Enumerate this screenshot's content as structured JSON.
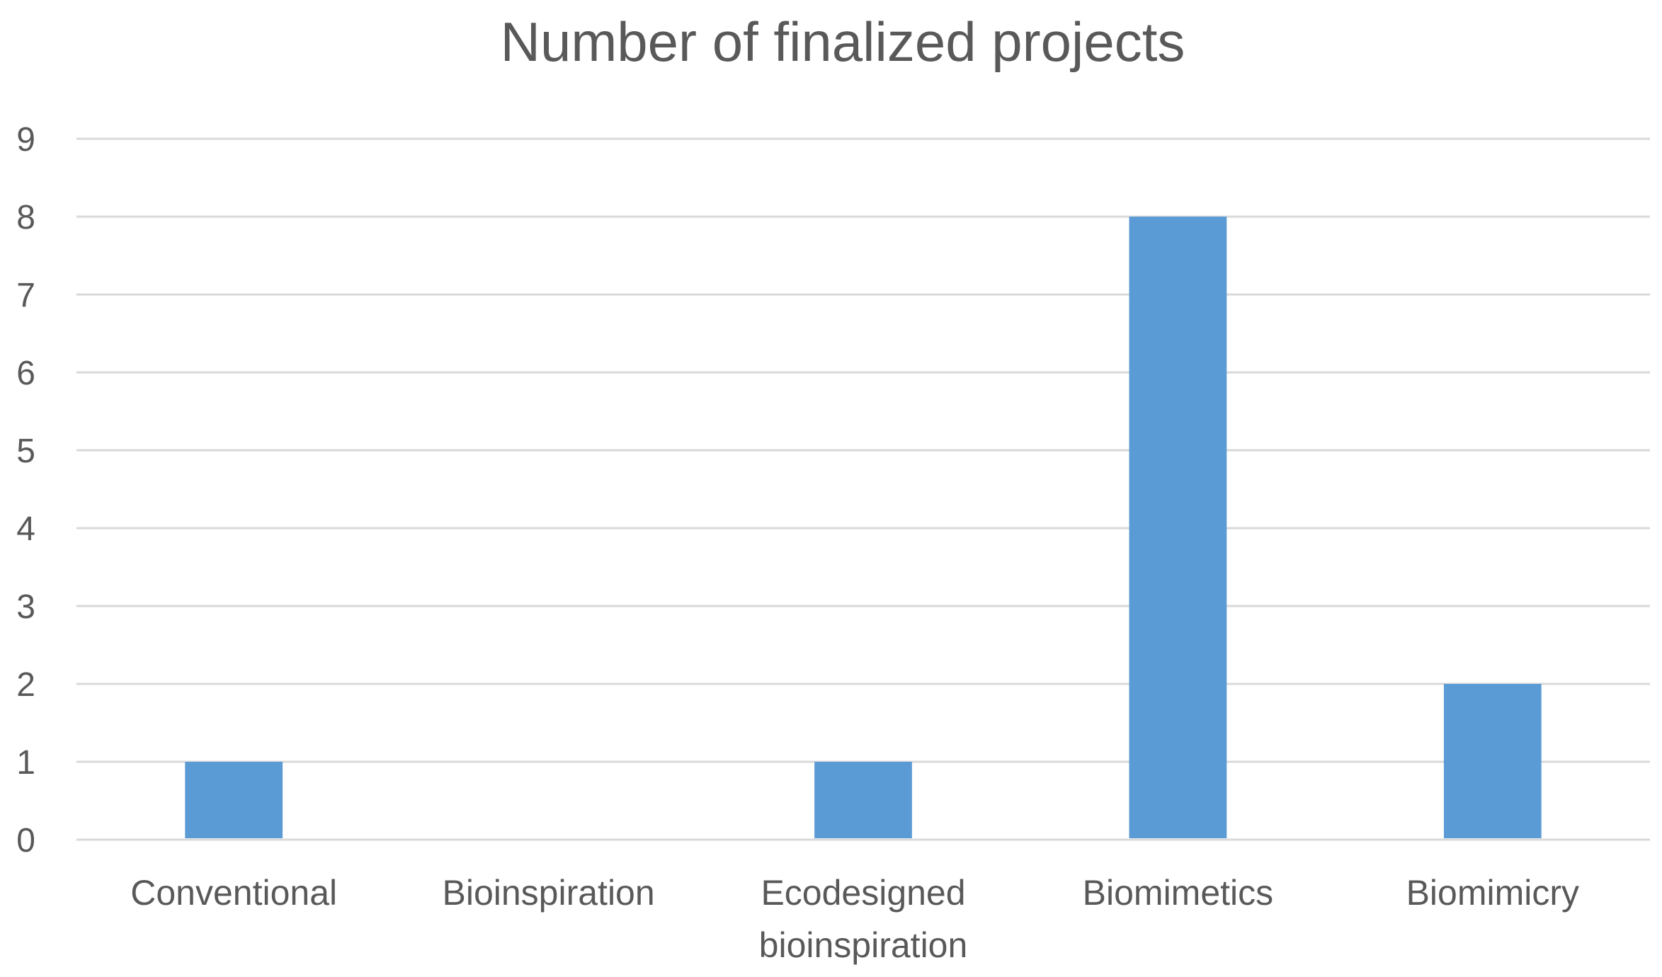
{
  "chart_data": {
    "type": "bar",
    "title": "Number of finalized projects",
    "xlabel": "",
    "ylabel": "",
    "categories": [
      [
        "Conventional"
      ],
      [
        "Bioinspiration"
      ],
      [
        "Ecodesigned",
        "bioinspiration"
      ],
      [
        "Biomimetics"
      ],
      [
        "Biomimicry"
      ]
    ],
    "values": [
      1,
      0,
      1,
      8,
      2
    ],
    "ylim": [
      0,
      9
    ],
    "yticks": [
      0,
      1,
      2,
      3,
      4,
      5,
      6,
      7,
      8,
      9
    ],
    "grid": true,
    "legend": "none",
    "bar_color": "#5b9bd5",
    "grid_color": "#d9d9d9",
    "text_color": "#595959"
  }
}
